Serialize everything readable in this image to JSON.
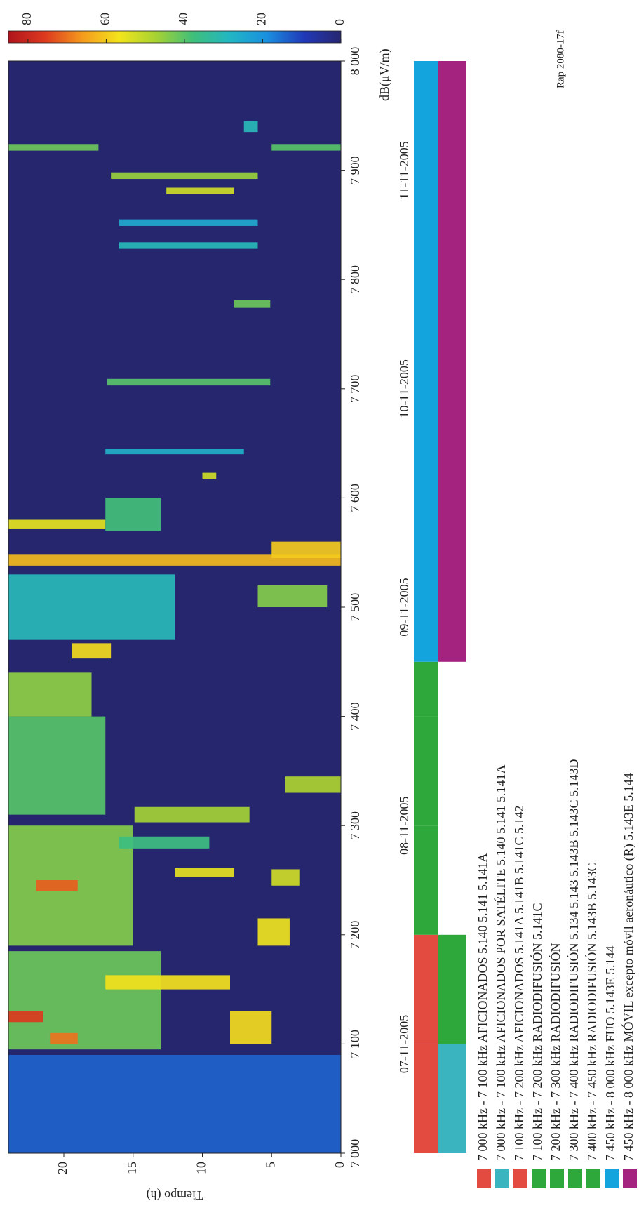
{
  "chart_data": {
    "type": "heatmap",
    "ylabel": "Tiempo (h)",
    "colorbar_label": "dB(μV/m)",
    "figure_id": "Rap 2080-17f",
    "clim": [
      0,
      85
    ],
    "colorbar_ticks": [
      0,
      20,
      40,
      60,
      80
    ],
    "colormap": [
      "#26266f",
      "#2139b8",
      "#1a8fe0",
      "#22b6c4",
      "#3fbf7a",
      "#a6d233",
      "#f3e41c",
      "#f49a1d",
      "#dd3a1f",
      "#b0141c"
    ],
    "xlim": [
      7000,
      8000
    ],
    "xticks": [
      {
        "value": 7000,
        "label": "7 000"
      },
      {
        "value": 7100,
        "label": "7 100"
      },
      {
        "value": 7200,
        "label": "7 200"
      },
      {
        "value": 7300,
        "label": "7 300"
      },
      {
        "value": 7400,
        "label": "7 400"
      },
      {
        "value": 7500,
        "label": "7 500"
      },
      {
        "value": 7600,
        "label": "7 600"
      },
      {
        "value": 7700,
        "label": "7 700"
      },
      {
        "value": 7800,
        "label": "7 800"
      },
      {
        "value": 7900,
        "label": "7 900"
      },
      {
        "value": 8000,
        "label": "8 000"
      }
    ],
    "ylim": [
      0,
      24
    ],
    "yticks": [
      0,
      5,
      10,
      15,
      20
    ],
    "dates": [
      "07-11-2005",
      "08-11-2005",
      "09-11-2005",
      "10-11-2005",
      "11-11-2005"
    ],
    "signals": [
      {
        "f0": 7000,
        "f1": 7090,
        "t0": 0,
        "t1": 24,
        "db": 14
      },
      {
        "f0": 7095,
        "f1": 7185,
        "t0": 13,
        "t1": 24,
        "db": 42
      },
      {
        "f0": 7100,
        "f1": 7110,
        "t0": 19,
        "t1": 21,
        "db": 70
      },
      {
        "f0": 7120,
        "f1": 7130,
        "t0": 21.5,
        "t1": 24,
        "db": 76
      },
      {
        "f0": 7150,
        "f1": 7163,
        "t0": 8,
        "t1": 17,
        "db": 57
      },
      {
        "f0": 7190,
        "f1": 7300,
        "t0": 15,
        "t1": 24,
        "db": 44
      },
      {
        "f0": 7240,
        "f1": 7250,
        "t0": 19,
        "t1": 22,
        "db": 72
      },
      {
        "f0": 7253,
        "f1": 7261,
        "t0": 7.7,
        "t1": 12,
        "db": 55
      },
      {
        "f0": 7279,
        "f1": 7290,
        "t0": 9.5,
        "t1": 16,
        "db": 37
      },
      {
        "f0": 7303,
        "f1": 7317,
        "t0": 6.6,
        "t1": 14.9,
        "db": 47
      },
      {
        "f0": 7310,
        "f1": 7400,
        "t0": 17,
        "t1": 24,
        "db": 40
      },
      {
        "f0": 7400,
        "f1": 7440,
        "t0": 18,
        "t1": 24,
        "db": 45
      },
      {
        "f0": 7453,
        "f1": 7467,
        "t0": 16.6,
        "t1": 19.4,
        "db": 58
      },
      {
        "f0": 7470,
        "f1": 7530,
        "t0": 12,
        "t1": 24,
        "db": 30
      },
      {
        "f0": 7538,
        "f1": 7548,
        "t0": 0,
        "t1": 24,
        "db": 62
      },
      {
        "f0": 7572,
        "f1": 7580,
        "t0": 17,
        "t1": 24,
        "db": 55
      },
      {
        "f0": 7570,
        "f1": 7600,
        "t0": 13,
        "t1": 17,
        "db": 38
      },
      {
        "f0": 7190,
        "f1": 7215,
        "t0": 3.7,
        "t1": 6,
        "db": 56
      },
      {
        "f0": 7245,
        "f1": 7260,
        "t0": 3,
        "t1": 5,
        "db": 52
      },
      {
        "f0": 7330,
        "f1": 7345,
        "t0": 0,
        "t1": 4,
        "db": 48
      },
      {
        "f0": 7500,
        "f1": 7520,
        "t0": 1,
        "t1": 6,
        "db": 44
      },
      {
        "f0": 7545,
        "f1": 7560,
        "t0": 0,
        "t1": 5,
        "db": 60
      },
      {
        "f0": 7100,
        "f1": 7130,
        "t0": 5,
        "t1": 8,
        "db": 58
      },
      {
        "f0": 7617,
        "f1": 7623,
        "t0": 9,
        "t1": 10,
        "db": 52
      },
      {
        "f0": 7640,
        "f1": 7645,
        "t0": 7,
        "t1": 17,
        "db": 27
      },
      {
        "f0": 7703,
        "f1": 7709,
        "t0": 5.1,
        "t1": 16.9,
        "db": 40
      },
      {
        "f0": 7774,
        "f1": 7781,
        "t0": 5.1,
        "t1": 7.7,
        "db": 42
      },
      {
        "f0": 7828,
        "f1": 7834,
        "t0": 6,
        "t1": 16,
        "db": 30
      },
      {
        "f0": 7849,
        "f1": 7855,
        "t0": 6,
        "t1": 16,
        "db": 25
      },
      {
        "f0": 7878,
        "f1": 7884,
        "t0": 7.7,
        "t1": 12.6,
        "db": 52
      },
      {
        "f0": 7892,
        "f1": 7898,
        "t0": 6,
        "t1": 16.6,
        "db": 46
      },
      {
        "f0": 7918,
        "f1": 7924,
        "t0": 17.5,
        "t1": 24,
        "db": 42
      },
      {
        "f0": 7918,
        "f1": 7924,
        "t0": 0,
        "t1": 5,
        "db": 40
      },
      {
        "f0": 7935,
        "f1": 7945,
        "t0": 6,
        "t1": 7,
        "db": 30
      }
    ],
    "bands": [
      {
        "label": "7 000 kHz - 7 100 kHz AFICIONADOS 5.140 5.141 5.141A",
        "color": "#e34a40",
        "start": 7000,
        "end": 7100
      },
      {
        "label": "7 000 kHz - 7 100 kHz AFICIONADOS POR SATÉLITE 5.140 5.141 5.141A",
        "color": "#3ab5c0",
        "start": 7000,
        "end": 7100
      },
      {
        "label": "7 100 kHz - 7 200 kHz AFICIONADOS 5.141A 5.141B 5.141C 5.142",
        "color": "#e34a40",
        "start": 7100,
        "end": 7200
      },
      {
        "label": "7 100 kHz - 7 200 kHz RADIODIFUSIÓN 5.141C",
        "color": "#2ea83a",
        "start": 7100,
        "end": 7200
      },
      {
        "label": "7 200 kHz - 7 300 kHz RADIODIFUSIÓN",
        "color": "#2ea83a",
        "start": 7200,
        "end": 7300
      },
      {
        "label": "7 300 kHz - 7 400 kHz RADIODIFUSIÓN 5.134 5.143 5.143B 5.143C 5.143D",
        "color": "#2ea83a",
        "start": 7300,
        "end": 7400
      },
      {
        "label": "7 400 kHz - 7 450 kHz RADIODIFUSIÓN 5.143B 5.143C",
        "color": "#2ea83a",
        "start": 7400,
        "end": 7450
      },
      {
        "label": "7 450 kHz - 8 000 kHz FIJO 5.143E 5.144",
        "color": "#13a4dd",
        "start": 7450,
        "end": 8000
      },
      {
        "label": "7 450 kHz - 8 000 kHz MÓVIL excepto móvil aeronáutico (R) 5.143E 5.144",
        "color": "#a3237e",
        "start": 7450,
        "end": 8000
      }
    ]
  }
}
